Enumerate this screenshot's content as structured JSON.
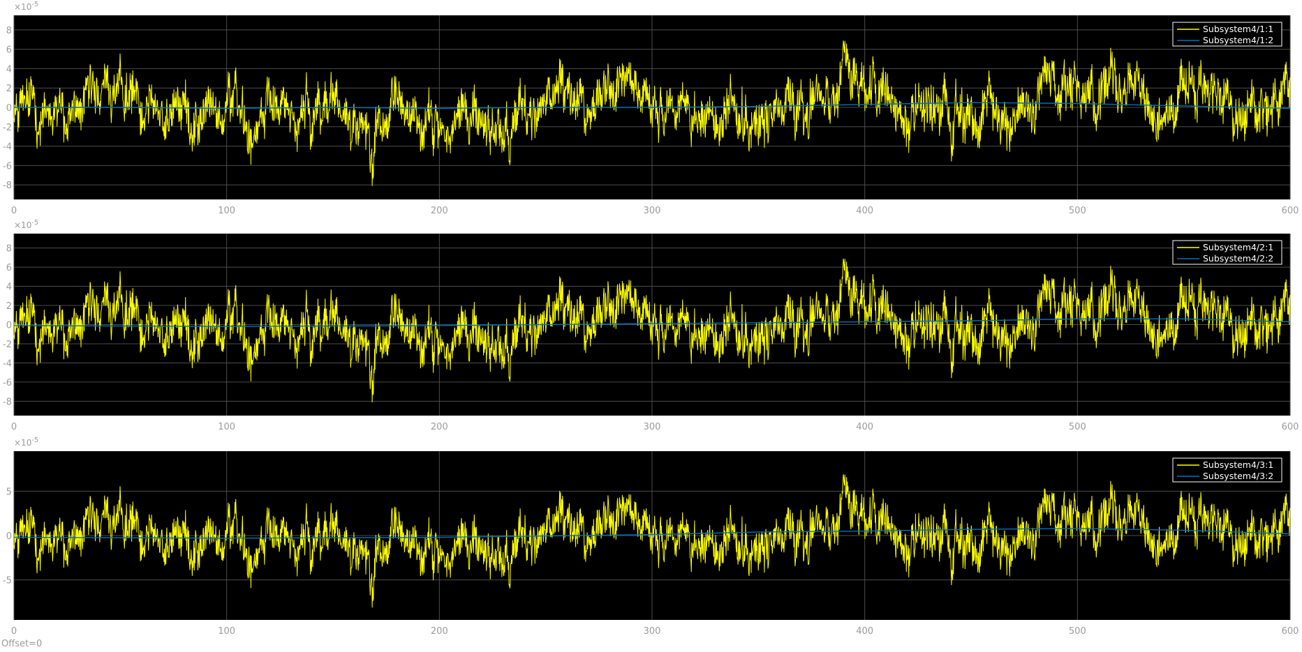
{
  "chart_data": [
    {
      "type": "line",
      "title": "",
      "xlabel": "",
      "ylabel": "",
      "xlim": [
        0,
        600
      ],
      "ylim": [
        -9.5,
        9.5
      ],
      "x_ticks": [
        "0",
        "100",
        "200",
        "300",
        "400",
        "500",
        "600"
      ],
      "y_ticks": [
        "-8",
        "-6",
        "-4",
        "-2",
        "0",
        "2",
        "4",
        "6",
        "8"
      ],
      "y_tick_values": [
        -8,
        -6,
        -4,
        -2,
        0,
        2,
        4,
        6,
        8
      ],
      "y_exponent_base": "×10",
      "y_exponent_power": "-5",
      "grid": true,
      "legend_position": "top-right",
      "series": [
        {
          "name": "Subsystem4/1:1",
          "color": "#ffff00",
          "description": "noisy signal, amplitude about 2e-5"
        },
        {
          "name": "Subsystem4/1:2",
          "color": "#0072bd",
          "description": "slow drift near 0",
          "values": [
            [
              0,
              0
            ],
            [
              50,
              0
            ],
            [
              100,
              -0.1
            ],
            [
              150,
              0
            ],
            [
              200,
              -0.1
            ],
            [
              250,
              0
            ],
            [
              300,
              0
            ],
            [
              350,
              0.1
            ],
            [
              400,
              0.3
            ],
            [
              450,
              0.5
            ],
            [
              500,
              0.4
            ],
            [
              540,
              0.2
            ],
            [
              600,
              -0.1
            ]
          ]
        }
      ]
    },
    {
      "type": "line",
      "title": "",
      "xlabel": "",
      "ylabel": "",
      "xlim": [
        0,
        600
      ],
      "ylim": [
        -9.5,
        9.5
      ],
      "x_ticks": [
        "0",
        "100",
        "200",
        "300",
        "400",
        "500",
        "600"
      ],
      "y_ticks": [
        "-8",
        "-6",
        "-4",
        "-2",
        "0",
        "2",
        "4",
        "6",
        "8"
      ],
      "y_tick_values": [
        -8,
        -6,
        -4,
        -2,
        0,
        2,
        4,
        6,
        8
      ],
      "y_exponent_base": "×10",
      "y_exponent_power": "-5",
      "grid": true,
      "legend_position": "top-right",
      "series": [
        {
          "name": "Subsystem4/2:1",
          "color": "#ffff00",
          "description": "noisy signal, amplitude about 2e-5"
        },
        {
          "name": "Subsystem4/2:2",
          "color": "#0072bd",
          "description": "slow drift",
          "values": [
            [
              0,
              -0.1
            ],
            [
              100,
              -0.2
            ],
            [
              200,
              -0.1
            ],
            [
              300,
              0.1
            ],
            [
              350,
              0.2
            ],
            [
              400,
              0.3
            ],
            [
              450,
              0.4
            ],
            [
              500,
              0.6
            ],
            [
              550,
              0.6
            ],
            [
              600,
              0.3
            ]
          ]
        }
      ]
    },
    {
      "type": "line",
      "title": "",
      "xlabel": "",
      "ylabel": "",
      "xlim": [
        0,
        600
      ],
      "ylim": [
        -9.5,
        9.5
      ],
      "x_ticks": [
        "0",
        "100",
        "200",
        "300",
        "400",
        "500",
        "600"
      ],
      "y_ticks": [
        "-5",
        "0",
        "5"
      ],
      "y_tick_values": [
        -5,
        0,
        5
      ],
      "y_exponent_base": "×10",
      "y_exponent_power": "-5",
      "grid": true,
      "legend_position": "top-right",
      "series": [
        {
          "name": "Subsystem4/3:1",
          "color": "#ffff00",
          "description": "noisy signal, amplitude about 2e-5"
        },
        {
          "name": "Subsystem4/3:2",
          "color": "#0072bd",
          "description": "slow drift",
          "values": [
            [
              0,
              -0.2
            ],
            [
              100,
              -0.3
            ],
            [
              200,
              -0.2
            ],
            [
              300,
              0.1
            ],
            [
              350,
              0.4
            ],
            [
              400,
              0.5
            ],
            [
              450,
              0.7
            ],
            [
              500,
              0.8
            ],
            [
              550,
              0.6
            ],
            [
              600,
              0.2
            ]
          ]
        }
      ]
    }
  ],
  "footer": {
    "offset_label": "Offset=0"
  }
}
